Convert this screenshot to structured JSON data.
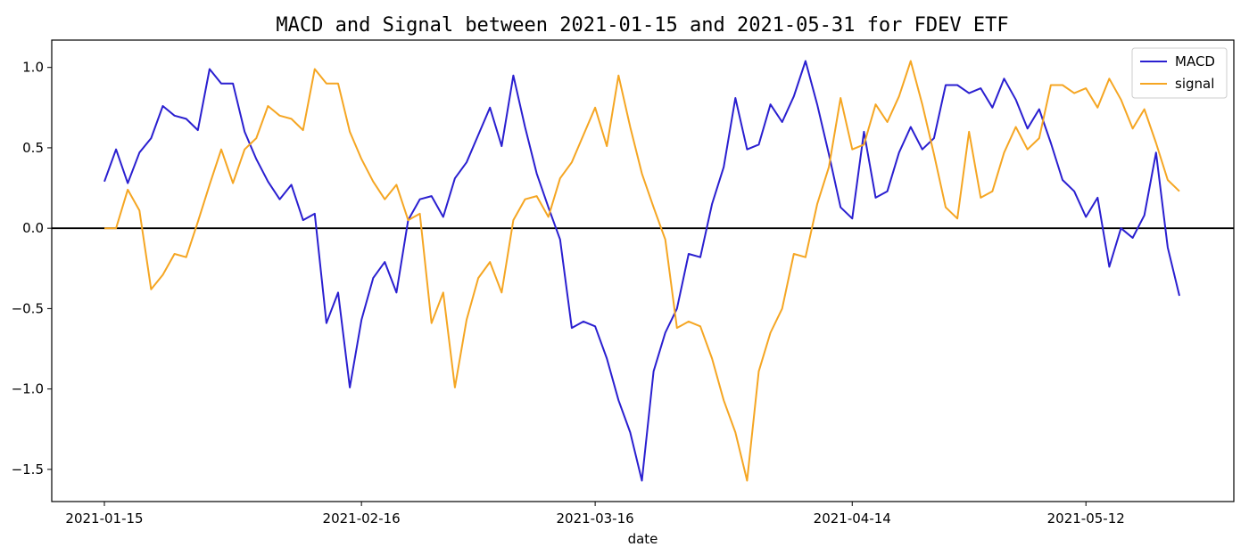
{
  "chart_data": {
    "type": "line",
    "title": "MACD and Signal between 2021-01-15 and 2021-05-31 for FDEV ETF",
    "xlabel": "date",
    "ylabel": "",
    "x_tick_labels": [
      "2021-01-15",
      "2021-02-16",
      "2021-03-16",
      "2021-04-14",
      "2021-05-12"
    ],
    "y_ticks": [
      1.0,
      0.5,
      0.0,
      -0.5,
      -1.0,
      -1.5
    ],
    "y_tick_labels": [
      "1.0",
      "0.5",
      "0.0",
      "−0.5",
      "−1.0",
      "−1.5"
    ],
    "ylim": [
      -1.7,
      1.17
    ],
    "grid": false,
    "legend_position": "top-right",
    "zero_line": true,
    "series": [
      {
        "name": "MACD",
        "color": "#2a1fd0",
        "values": [
          0.29,
          0.49,
          0.28,
          0.47,
          0.56,
          0.76,
          0.7,
          0.68,
          0.61,
          0.99,
          0.9,
          0.9,
          0.6,
          0.43,
          0.29,
          0.18,
          0.27,
          0.05,
          0.09,
          -0.59,
          -0.4,
          -0.99,
          -0.57,
          -0.31,
          -0.21,
          -0.4,
          0.05,
          0.18,
          0.2,
          0.07,
          0.31,
          0.41,
          0.58,
          0.75,
          0.51,
          0.95,
          0.63,
          0.34,
          0.13,
          -0.07,
          -0.62,
          -0.58,
          -0.61,
          -0.81,
          -1.07,
          -1.27,
          -1.57,
          -0.89,
          -0.65,
          -0.5,
          -0.16,
          -0.18,
          0.15,
          0.38,
          0.81,
          0.49,
          0.52,
          0.77,
          0.66,
          0.82,
          1.04,
          0.77,
          0.46,
          0.13,
          0.06,
          0.6,
          0.19,
          0.23,
          0.47,
          0.63,
          0.49,
          0.56,
          0.89,
          0.89,
          0.84,
          0.87,
          0.75,
          0.93,
          0.8,
          0.62,
          0.74,
          0.53,
          0.3,
          0.23,
          0.07,
          0.19,
          -0.24,
          0.0,
          -0.06,
          0.08,
          0.47,
          -0.12,
          -0.42
        ]
      },
      {
        "name": "signal",
        "color": "#f5a623",
        "values": [
          0.0,
          0.0,
          0.24,
          0.11,
          -0.38,
          -0.29,
          -0.16,
          -0.18,
          0.04,
          0.27,
          0.49,
          0.28,
          0.49,
          0.56,
          0.76,
          0.7,
          0.68,
          0.61,
          0.99,
          0.9,
          0.9,
          0.6,
          0.43,
          0.29,
          0.18,
          0.27,
          0.05,
          0.09,
          -0.59,
          -0.4,
          -0.99,
          -0.57,
          -0.31,
          -0.21,
          -0.4,
          0.05,
          0.18,
          0.2,
          0.07,
          0.31,
          0.41,
          0.58,
          0.75,
          0.51,
          0.95,
          0.63,
          0.34,
          0.13,
          -0.07,
          -0.62,
          -0.58,
          -0.61,
          -0.81,
          -1.07,
          -1.27,
          -1.57,
          -0.89,
          -0.65,
          -0.5,
          -0.16,
          -0.18,
          0.15,
          0.38,
          0.81,
          0.49,
          0.52,
          0.77,
          0.66,
          0.82,
          1.04,
          0.77,
          0.46,
          0.13,
          0.06,
          0.6,
          0.19,
          0.23,
          0.47,
          0.63,
          0.49,
          0.56,
          0.89,
          0.89,
          0.84,
          0.87,
          0.75,
          0.93,
          0.8,
          0.62,
          0.74,
          0.53,
          0.3,
          0.23
        ]
      }
    ]
  }
}
